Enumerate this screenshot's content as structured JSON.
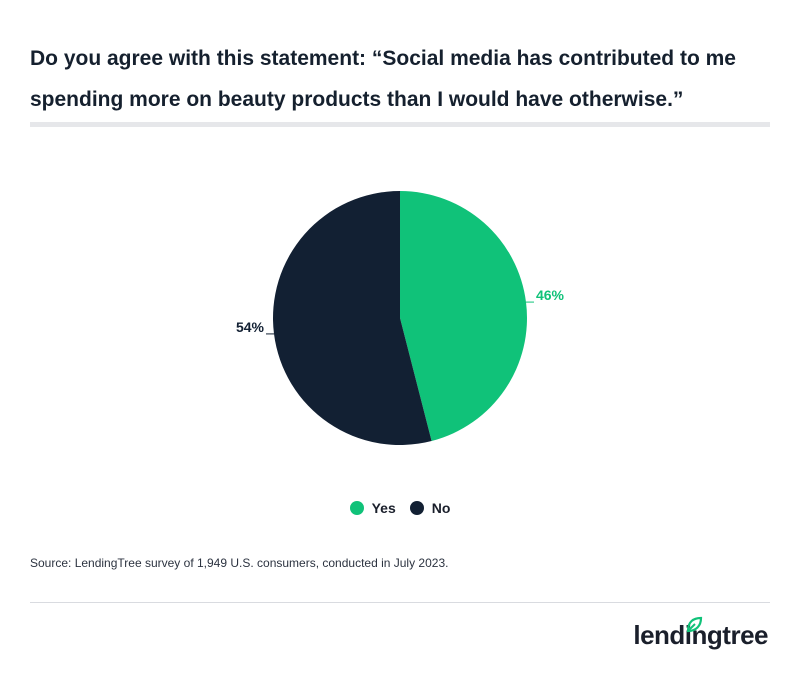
{
  "title": "Do you agree with this statement: “Social media has contributed to me spending more on beauty products than I would have otherwise.”",
  "source": "Source: LendingTree survey of 1,949 U.S. consumers, conducted in July 2023.",
  "logo": {
    "text": "lendingtree"
  },
  "colors": {
    "yes": "#10c279",
    "no": "#122033",
    "rule": "#e6e7ea"
  },
  "legend": [
    {
      "label": "Yes",
      "color": "#10c279"
    },
    {
      "label": "No",
      "color": "#122033"
    }
  ],
  "chart_data": {
    "type": "pie",
    "title": "Do you agree with this statement: “Social media has contributed to me spending more on beauty products than I would have otherwise.”",
    "slices": [
      {
        "name": "Yes",
        "value": 46,
        "label": "46%",
        "color": "#10c279"
      },
      {
        "name": "No",
        "value": 54,
        "label": "54%",
        "color": "#122033"
      }
    ],
    "legend_position": "bottom"
  }
}
